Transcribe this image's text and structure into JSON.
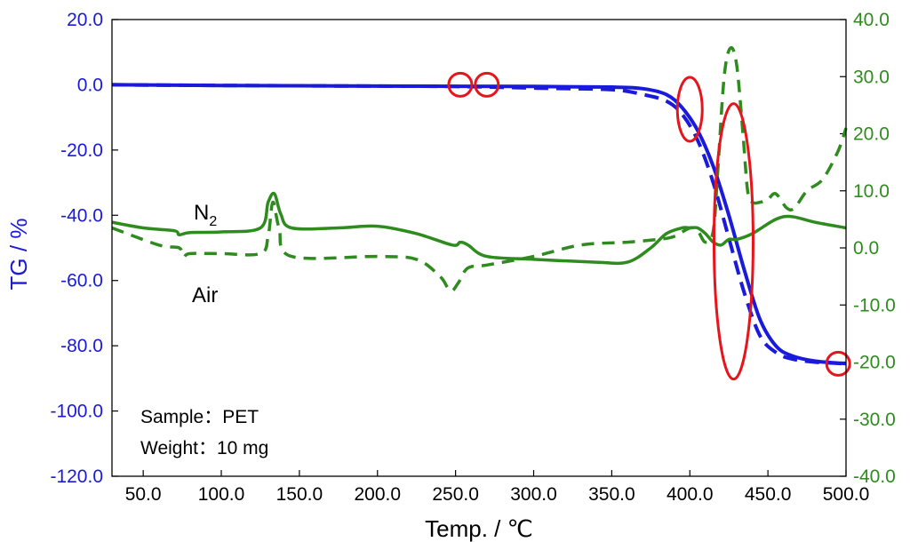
{
  "chart_data": {
    "type": "line",
    "title": "",
    "xlabel": "Temp. / ℃",
    "ylabel_left": "TG / %",
    "ylabel_right": "",
    "xlim": [
      30,
      500
    ],
    "ylim_left": [
      -120,
      20
    ],
    "ylim_right": [
      -40,
      40
    ],
    "x_ticks": [
      "50.0",
      "100.0",
      "150.0",
      "200.0",
      "250.0",
      "300.0",
      "350.0",
      "400.0",
      "450.0",
      "500.0"
    ],
    "y_left_ticks": [
      "20.0",
      "0.0",
      "-20.0",
      "-40.0",
      "-60.0",
      "-80.0",
      "-100.0",
      "-120.0"
    ],
    "y_right_ticks": [
      "40.0",
      "30.0",
      "20.0",
      "10.0",
      "0.0",
      "-10.0",
      "-20.0",
      "-30.0",
      "-40.0"
    ],
    "colors": {
      "tg": "#1a1adb",
      "dta": "#2e8b1e",
      "marker": "#e8141c",
      "axis": "#000000"
    },
    "series": [
      {
        "name": "N2",
        "axis": "left",
        "style": "solid",
        "x": [
          30,
          100,
          200,
          300,
          350,
          370,
          385,
          395,
          405,
          415,
          425,
          435,
          445,
          455,
          465,
          480,
          500
        ],
        "y": [
          0,
          -0.2,
          -0.4,
          -0.5,
          -0.7,
          -1.2,
          -3,
          -7,
          -14,
          -25,
          -40,
          -57,
          -72,
          -80,
          -83,
          -84.7,
          -85.5
        ]
      },
      {
        "name": "Air",
        "axis": "left",
        "style": "dashed",
        "x": [
          30,
          100,
          200,
          250,
          300,
          350,
          370,
          385,
          395,
          405,
          415,
          425,
          435,
          445,
          455,
          465,
          480,
          500
        ],
        "y": [
          0,
          -0.2,
          -0.4,
          -0.5,
          -1,
          -1.5,
          -3,
          -5,
          -9,
          -17,
          -30,
          -47,
          -64,
          -77,
          -82,
          -84,
          -85,
          -85.5
        ]
      },
      {
        "name": "N2",
        "axis": "right",
        "style": "solid",
        "x": [
          30,
          50,
          70,
          73,
          80,
          100,
          125,
          130,
          134,
          138,
          145,
          175,
          200,
          225,
          248,
          253,
          258,
          270,
          300,
          340,
          360,
          375,
          385,
          395,
          400,
          405,
          410,
          415,
          420,
          425,
          430,
          440,
          455,
          465,
          480,
          500
        ],
        "y": [
          4.5,
          3.5,
          3,
          2.3,
          2.7,
          2.8,
          3.5,
          8,
          9.5,
          6,
          3.5,
          3.5,
          3.8,
          2.5,
          0.5,
          1,
          0.5,
          -1.5,
          -2,
          -2.5,
          -2.5,
          0,
          2.5,
          3.5,
          3.5,
          3.5,
          2.5,
          1,
          0.5,
          1.5,
          1.5,
          2.5,
          5,
          5.5,
          4.5,
          3.5
        ]
      },
      {
        "name": "Air",
        "axis": "right",
        "style": "dashed",
        "x": [
          30,
          60,
          73,
          76,
          80,
          100,
          125,
          130,
          133,
          137,
          145,
          200,
          225,
          240,
          245,
          248,
          252,
          258,
          270,
          300,
          330,
          360,
          380,
          390,
          400,
          405,
          410,
          415,
          418,
          422,
          426,
          430,
          434,
          437,
          440,
          445,
          450,
          455,
          462,
          467,
          475,
          485,
          495,
          500
        ],
        "y": [
          3.5,
          0.5,
          0,
          -1.5,
          -1,
          -1,
          -1,
          2,
          8,
          3.5,
          -1.5,
          -1.5,
          -2,
          -5,
          -7,
          -7.5,
          -6,
          -3.5,
          -3,
          -1.5,
          0.5,
          1,
          1.5,
          2,
          3.5,
          3,
          1,
          3,
          14,
          30,
          35,
          32,
          20,
          10,
          8,
          8,
          8.5,
          9.5,
          7,
          7,
          10,
          12,
          17,
          21
        ]
      }
    ],
    "labels": {
      "n2": "N",
      "n2_subscript": "2",
      "air": "Air"
    },
    "sample_info": {
      "sample_label": "Sample",
      "sample_value": "PET",
      "weight_label": "Weight",
      "weight_value": "10 mg",
      "separator": "："
    },
    "highlights": [
      {
        "shape": "circle",
        "x": 253,
        "y_axis": "left",
        "y": 0
      },
      {
        "shape": "circle",
        "x": 270,
        "y_axis": "left",
        "y": 0
      },
      {
        "shape": "circle",
        "x": 495,
        "y_axis": "left",
        "y": -85.5
      },
      {
        "shape": "ellipse",
        "x": 400,
        "y_axis": "left",
        "y": -7.5
      },
      {
        "shape": "ellipse",
        "x": 428,
        "y_axis": "left",
        "y": -48
      }
    ]
  }
}
